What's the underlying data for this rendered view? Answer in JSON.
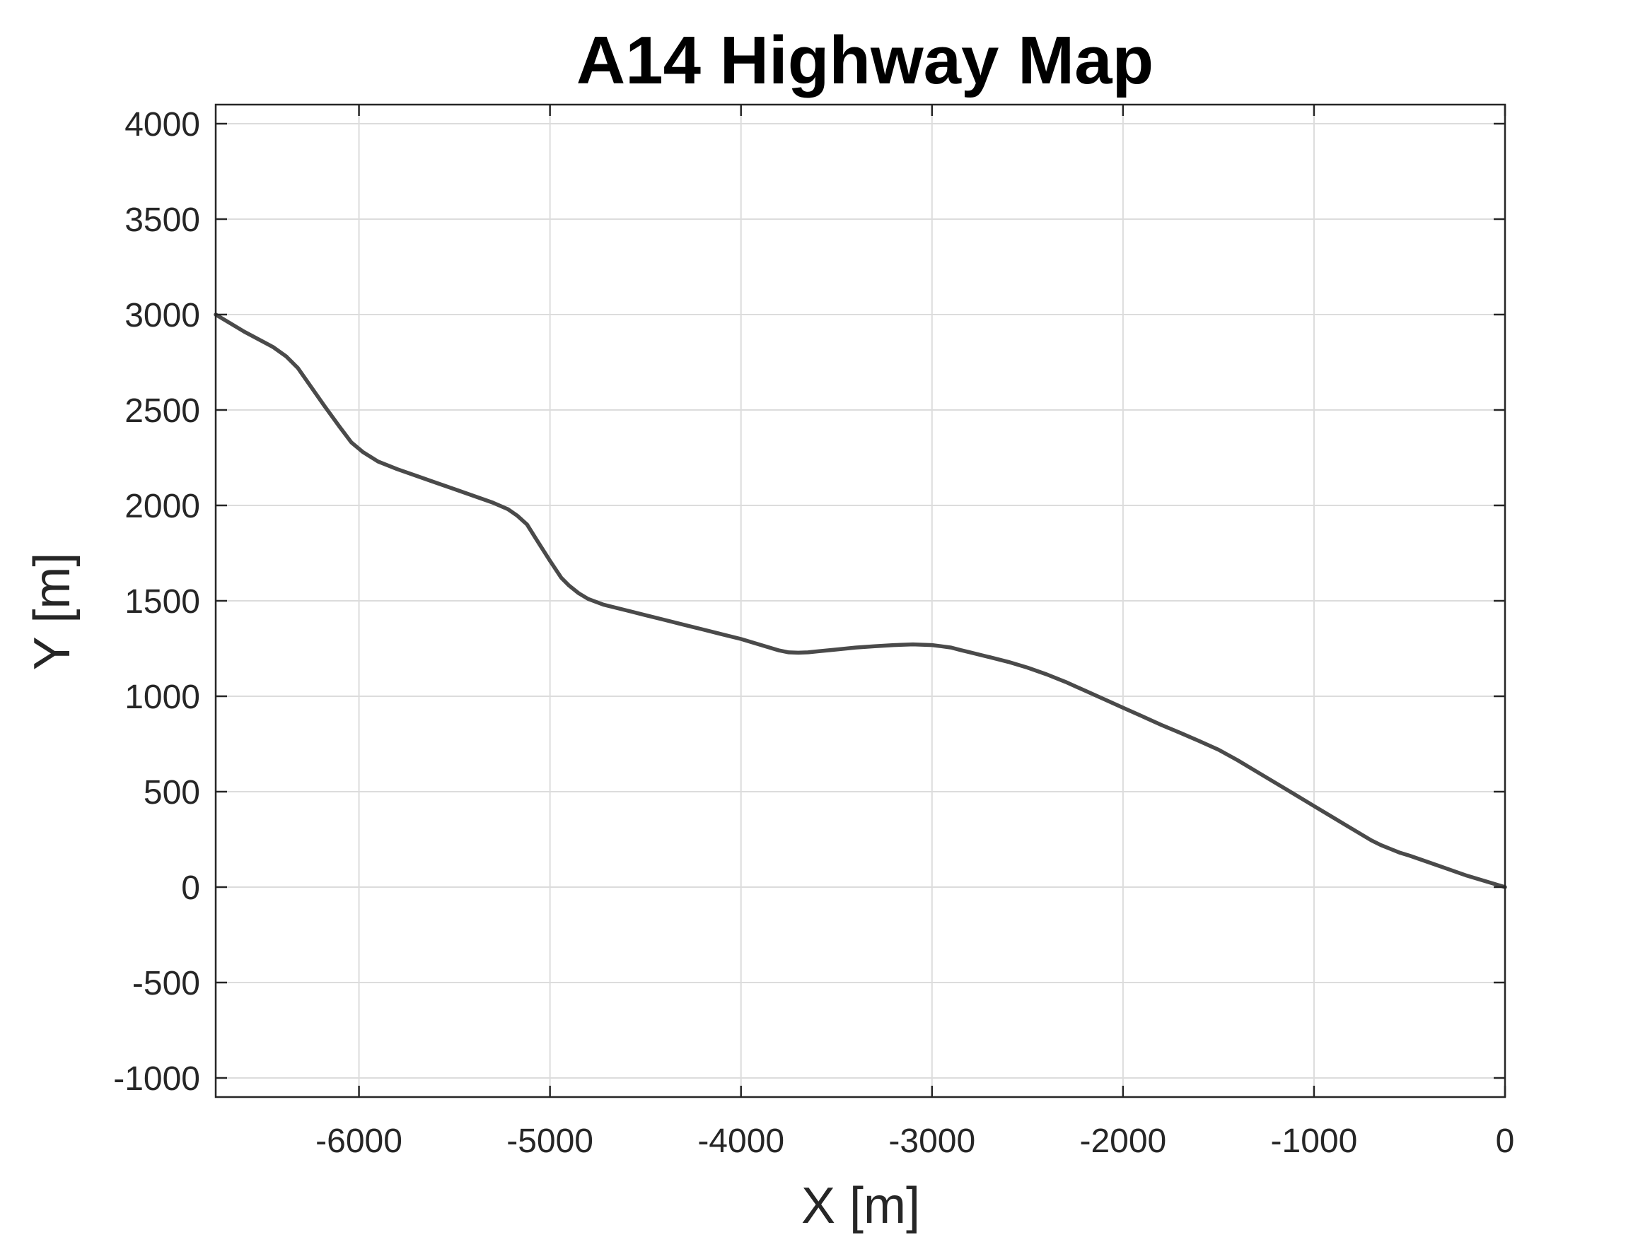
{
  "chart_data": {
    "type": "line",
    "title": "A14 Highway Map",
    "xlabel": "X [m]",
    "ylabel": "Y [m]",
    "xlim": [
      -6750,
      0
    ],
    "ylim": [
      -1100,
      4100
    ],
    "xticks": [
      -6000,
      -5000,
      -4000,
      -3000,
      -2000,
      -1000,
      0
    ],
    "yticks": [
      -1000,
      -500,
      0,
      500,
      1000,
      1500,
      2000,
      2500,
      3000,
      3500,
      4000
    ],
    "grid": true,
    "line_color": "#4a4a4a",
    "series": [
      {
        "x": [
          -6750,
          -6600,
          -6450,
          -6380,
          -6320,
          -6250,
          -6180,
          -6100,
          -6040,
          -5980,
          -5900,
          -5800,
          -5700,
          -5600,
          -5500,
          -5400,
          -5300,
          -5220,
          -5170,
          -5120,
          -5070,
          -5000,
          -4940,
          -4900,
          -4850,
          -4800,
          -4720,
          -4600,
          -4500,
          -4400,
          -4300,
          -4200,
          -4100,
          -4000,
          -3900,
          -3800,
          -3750,
          -3700,
          -3650,
          -3600,
          -3500,
          -3400,
          -3300,
          -3200,
          -3100,
          -3000,
          -2950,
          -2900,
          -2850,
          -2800,
          -2700,
          -2600,
          -2500,
          -2400,
          -2300,
          -2200,
          -2100,
          -2000,
          -1900,
          -1800,
          -1700,
          -1600,
          -1500,
          -1400,
          -1300,
          -1200,
          -1100,
          -1000,
          -900,
          -800,
          -700,
          -650,
          -600,
          -550,
          -500,
          -400,
          -300,
          -200,
          -100,
          0
        ],
        "y": [
          3000,
          2910,
          2830,
          2780,
          2720,
          2620,
          2520,
          2410,
          2330,
          2280,
          2230,
          2190,
          2155,
          2120,
          2085,
          2050,
          2015,
          1980,
          1945,
          1900,
          1820,
          1710,
          1620,
          1580,
          1540,
          1510,
          1480,
          1450,
          1425,
          1400,
          1375,
          1350,
          1325,
          1300,
          1270,
          1240,
          1230,
          1228,
          1230,
          1235,
          1245,
          1255,
          1262,
          1268,
          1272,
          1268,
          1262,
          1255,
          1242,
          1230,
          1205,
          1180,
          1150,
          1115,
          1075,
          1030,
          985,
          940,
          895,
          850,
          808,
          765,
          720,
          665,
          605,
          545,
          485,
          425,
          365,
          305,
          245,
          220,
          200,
          180,
          165,
          130,
          95,
          60,
          30,
          0
        ]
      }
    ]
  }
}
